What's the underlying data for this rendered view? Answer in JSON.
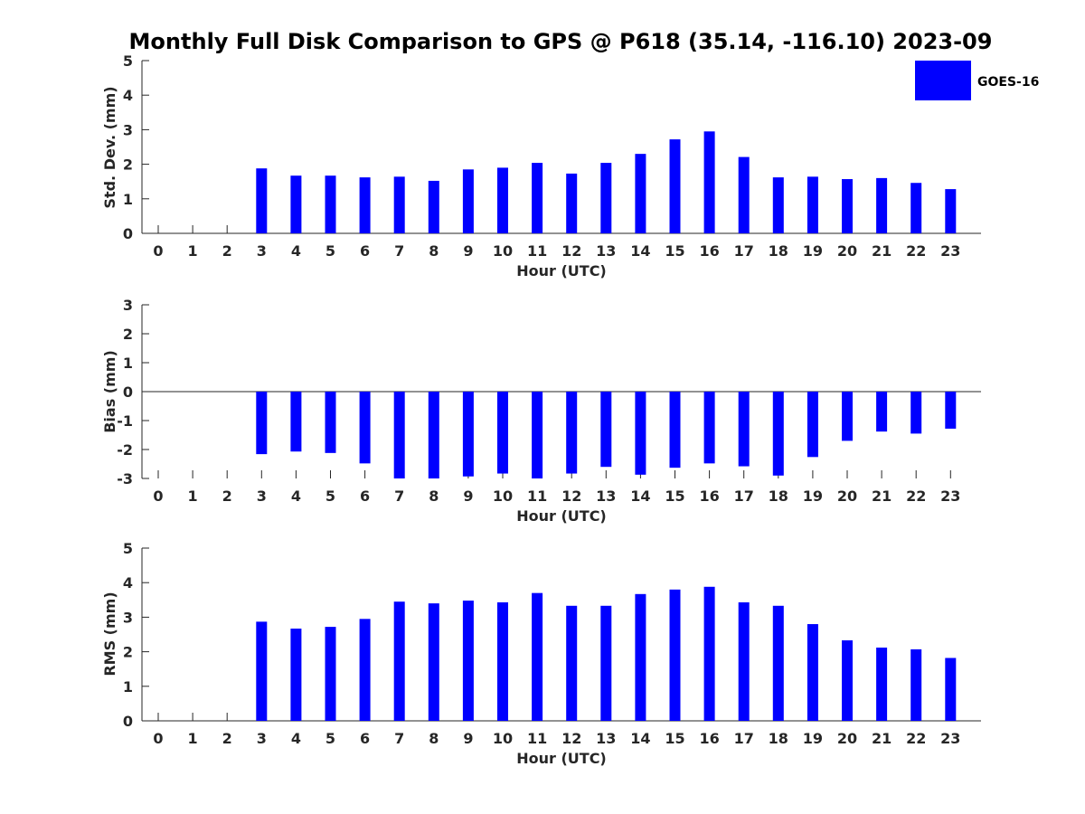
{
  "title": "Monthly Full Disk Comparison to GPS @ P618 (35.14, -116.10) 2023-09",
  "legend": {
    "label": "GOES-16",
    "color": "#0000ff",
    "placement": "top-right"
  },
  "chart_data": [
    {
      "type": "bar",
      "ylabel": "Std. Dev. (mm)",
      "xlabel": "Hour (UTC)",
      "ylim": [
        0,
        5
      ],
      "yticks": [
        "0",
        "1",
        "2",
        "3",
        "4",
        "5"
      ],
      "categories": [
        "0",
        "1",
        "2",
        "3",
        "4",
        "5",
        "6",
        "7",
        "8",
        "9",
        "10",
        "11",
        "12",
        "13",
        "14",
        "15",
        "16",
        "17",
        "18",
        "19",
        "20",
        "21",
        "22",
        "23"
      ],
      "series": [
        {
          "name": "GOES-16",
          "values": [
            null,
            null,
            null,
            1.88,
            1.67,
            1.67,
            1.62,
            1.64,
            1.52,
            1.85,
            1.9,
            2.04,
            1.73,
            2.04,
            2.3,
            2.72,
            2.95,
            2.21,
            1.62,
            1.64,
            1.57,
            1.6,
            1.46,
            1.28
          ]
        }
      ]
    },
    {
      "type": "bar",
      "ylabel": "Bias (mm)",
      "xlabel": "Hour (UTC)",
      "ylim": [
        -3,
        3
      ],
      "yticks": [
        "-3",
        "-2",
        "-1",
        "0",
        "1",
        "2",
        "3"
      ],
      "categories": [
        "0",
        "1",
        "2",
        "3",
        "4",
        "5",
        "6",
        "7",
        "8",
        "9",
        "10",
        "11",
        "12",
        "13",
        "14",
        "15",
        "16",
        "17",
        "18",
        "19",
        "20",
        "21",
        "22",
        "23"
      ],
      "series": [
        {
          "name": "GOES-16",
          "values": [
            null,
            null,
            null,
            -2.16,
            -2.07,
            -2.12,
            -2.48,
            -3.0,
            -3.0,
            -2.93,
            -2.83,
            -3.0,
            -2.83,
            -2.6,
            -2.87,
            -2.63,
            -2.48,
            -2.58,
            -2.9,
            -2.26,
            -1.7,
            -1.38,
            -1.45,
            -1.28
          ]
        }
      ]
    },
    {
      "type": "bar",
      "ylabel": "RMS (mm)",
      "xlabel": "Hour (UTC)",
      "ylim": [
        0,
        5
      ],
      "yticks": [
        "0",
        "1",
        "2",
        "3",
        "4",
        "5"
      ],
      "categories": [
        "0",
        "1",
        "2",
        "3",
        "4",
        "5",
        "6",
        "7",
        "8",
        "9",
        "10",
        "11",
        "12",
        "13",
        "14",
        "15",
        "16",
        "17",
        "18",
        "19",
        "20",
        "21",
        "22",
        "23"
      ],
      "series": [
        {
          "name": "GOES-16",
          "values": [
            null,
            null,
            null,
            2.87,
            2.67,
            2.72,
            2.95,
            3.45,
            3.4,
            3.48,
            3.43,
            3.7,
            3.33,
            3.33,
            3.67,
            3.8,
            3.88,
            3.43,
            3.33,
            2.8,
            2.33,
            2.12,
            2.07,
            1.82
          ]
        }
      ]
    }
  ]
}
